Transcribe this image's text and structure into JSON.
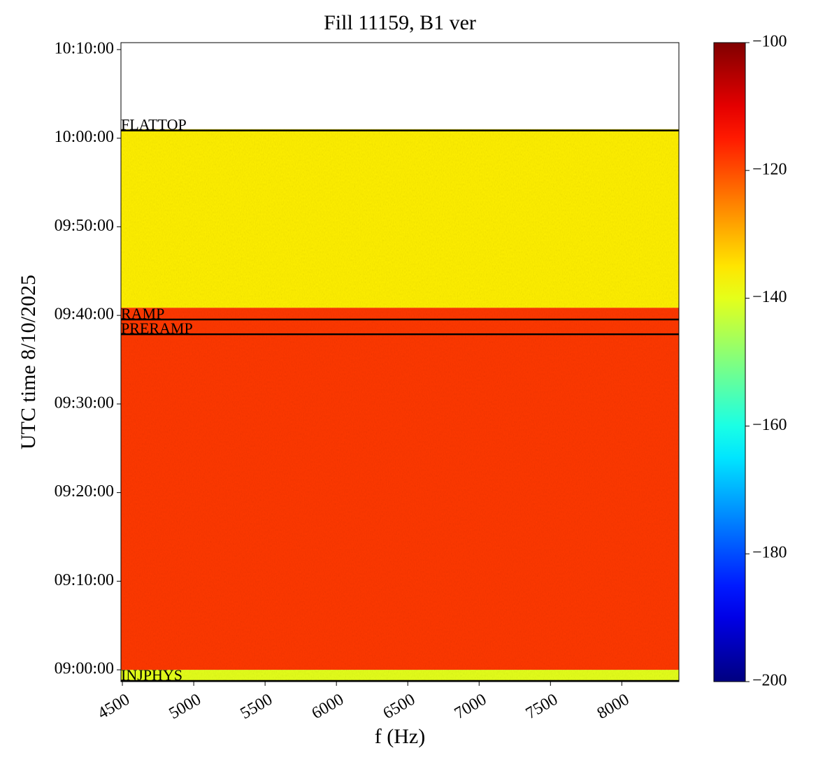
{
  "chart_data": {
    "type": "spectrogram",
    "title": "Fill 11159, B1 ver",
    "x_label": "f (Hz)",
    "y_label": "UTC time 8/10/2025",
    "xlim": [
      4490,
      8400
    ],
    "xticks": [
      4500,
      5000,
      5500,
      6000,
      6500,
      7000,
      7500,
      8000
    ],
    "ylim": [
      "08:58:40",
      "10:10:47"
    ],
    "yticks": [
      "10:10:00",
      "10:00:00",
      "09:50:00",
      "09:40:00",
      "09:30:00",
      "09:20:00",
      "09:10:00",
      "09:00:00"
    ],
    "colormap": "jet",
    "clim": [
      -200,
      -100
    ],
    "cticks": [
      {
        "value": -100,
        "label": "−100"
      },
      {
        "value": -120,
        "label": "−120"
      },
      {
        "value": -140,
        "label": "−140"
      },
      {
        "value": -160,
        "label": "−160"
      },
      {
        "value": -180,
        "label": "−180"
      },
      {
        "value": -200,
        "label": "−200"
      }
    ],
    "bands": [
      {
        "start": "08:58:40",
        "end": "09:00:00",
        "value": -140
      },
      {
        "start": "09:00:00",
        "end": "09:40:52",
        "value": -118
      },
      {
        "start": "09:40:52",
        "end": "10:01:01",
        "value": -136
      }
    ],
    "events": [
      {
        "label": "FLATTOP",
        "time": "10:00:52"
      },
      {
        "label": "RAMP",
        "time": "09:39:32"
      },
      {
        "label": "PRERAMP",
        "time": "09:37:52"
      },
      {
        "label": "INJPHYS",
        "time": "08:58:45"
      }
    ]
  }
}
